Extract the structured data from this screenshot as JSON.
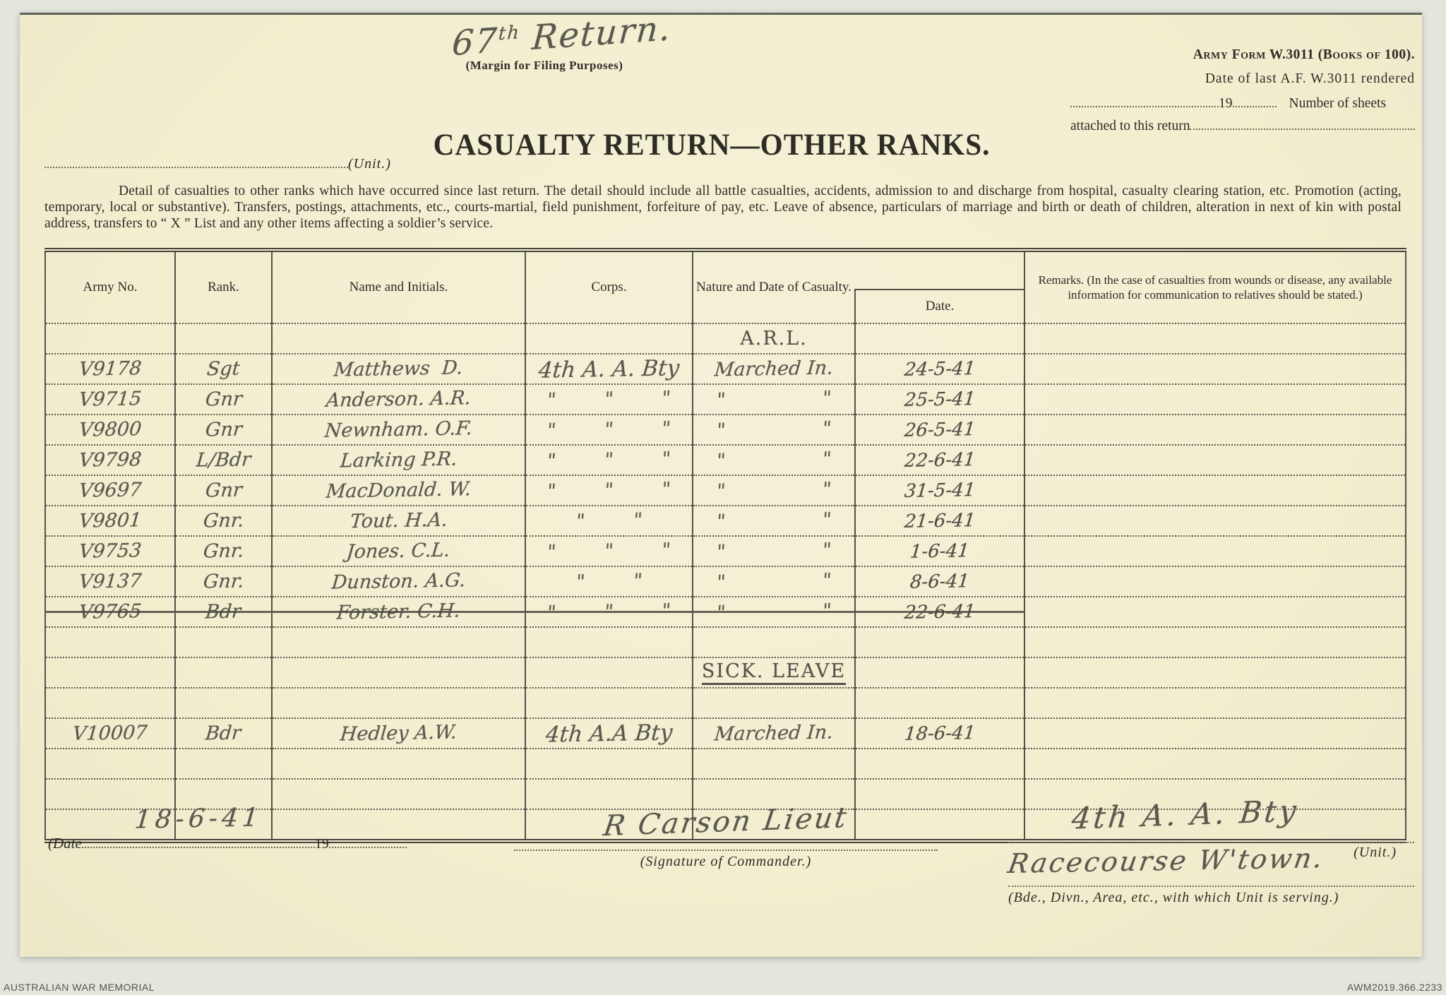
{
  "page": {
    "archive_left": "AUSTRALIAN WAR MEMORIAL",
    "archive_right": "AWM2019.366.2233"
  },
  "header": {
    "return_no": "67",
    "return_no_sup": "th",
    "return_word": "Return.",
    "margin_note": "(Margin for Filing Purposes)",
    "form_no": "Army Form W.3011 (Books of 100).",
    "rendered_text": "Date of last A.F. W.3011 rendered",
    "year_prefix": "19",
    "sheets_text": "Number of sheets",
    "attached_text": "attached to this return",
    "unit_label": "(Unit.)",
    "title": "CASUALTY RETURN—OTHER RANKS.",
    "instructions": "Detail of casualties to other ranks which have occurred since last return.  The detail should include all battle casualties, accidents, admission to and discharge from hospital, casualty clearing station, etc.  Promotion (acting, temporary, local or substantive).  Transfers, postings, attachments, etc., courts-martial, field punishment, forfeiture of pay, etc.  Leave of absence, particulars of marriage and birth or death of children, alteration in next of kin with postal address, transfers to “ X ” List and any other items affecting a soldier’s service."
  },
  "table": {
    "headers": {
      "army_no": "Army No.",
      "rank": "Rank.",
      "name": "Name and Initials.",
      "corps": "Corps.",
      "nature": "Nature and Date of Casualty.",
      "date": "Date.",
      "remarks": "Remarks.  (In the case of casualties from wounds or disease, any available information for communication to relatives should be stated.)"
    },
    "rows": [
      {
        "nature_note": "A.R.L."
      },
      {
        "army": "V9178",
        "rank": "Sgt",
        "name": "Matthews  D.",
        "corps": "4th A. A. Bty",
        "corps_large": true,
        "nature": "Marched In.",
        "date": "24-5-41"
      },
      {
        "army": "V9715",
        "rank": "Gnr",
        "name": "Anderson. A.R.",
        "corps": "\"        \"        \"",
        "nature": "\"                \"",
        "date": "25-5-41"
      },
      {
        "army": "V9800",
        "rank": "Gnr",
        "name": "Newnham. O.F.",
        "corps": "\"        \"        \"",
        "nature": "\"                \"",
        "date": "26-5-41"
      },
      {
        "army": "V9798",
        "rank": "L/Bdr",
        "name": "Larking P.R.",
        "corps": "\"        \"        \"",
        "nature": "\"                \"",
        "date": "22-6-41"
      },
      {
        "army": "V9697",
        "rank": "Gnr",
        "name": "MacDonald. W.",
        "corps": "\"        \"        \"",
        "nature": "\"                \"",
        "date": "31-5-41"
      },
      {
        "army": "V9801",
        "rank": "Gnr.",
        "name": "Tout. H.A.",
        "corps": "\"        \"",
        "nature": "\"                \"",
        "date": "21-6-41"
      },
      {
        "army": "V9753",
        "rank": "Gnr.",
        "name": "Jones. C.L.",
        "corps": "\"        \"        \"",
        "nature": "\"                \"",
        "date": "1-6-41"
      },
      {
        "army": "V9137",
        "rank": "Gnr.",
        "name": "Dunston. A.G.",
        "corps": "\"        \"",
        "nature": "\"                \"",
        "date": "8-6-41"
      },
      {
        "army": "V9765",
        "rank": "Bdr",
        "name": "Forster. C.H.",
        "corps": "\"        \"        \"",
        "nature": "\"                \"",
        "date": "22-6-41",
        "struck": true
      },
      {},
      {
        "nature_note": "SICK. LEAVE",
        "underline": true
      },
      {},
      {
        "army": "V10007",
        "rank": "Bdr",
        "name": "Hedley A.W.",
        "corps": "4th A.A Bty",
        "corps_large": true,
        "nature": "Marched In.",
        "date": "18-6-41"
      },
      {},
      {},
      {}
    ]
  },
  "footer": {
    "date_label": "(Date",
    "date_value": "18-6-41",
    "year_prefix": "19",
    "signature": "R Carson Lieut",
    "signature_label": "(Signature of Commander.)",
    "unit_value": "4th A. A. Bty",
    "unit_label": "(Unit.)",
    "serving_value": "Racecourse W'town.",
    "serving_label": "(Bde., Divn., Area, etc., with which Unit is serving.)"
  }
}
